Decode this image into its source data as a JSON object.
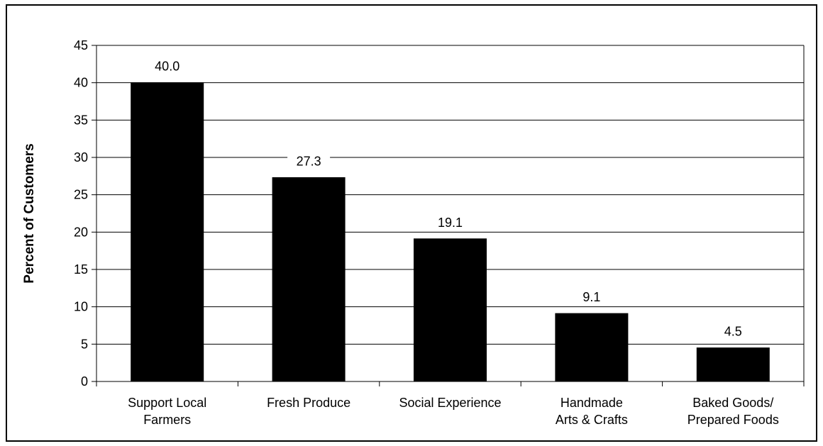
{
  "chart_data": {
    "type": "bar",
    "categories": [
      [
        "Support Local",
        "Farmers"
      ],
      [
        "Fresh Produce"
      ],
      [
        "Social Experience"
      ],
      [
        "Handmade",
        "Arts & Crafts"
      ],
      [
        "Baked Goods/",
        "Prepared Foods"
      ]
    ],
    "values": [
      40.0,
      27.3,
      19.1,
      9.1,
      4.5
    ],
    "data_labels": [
      "40.0",
      "27.3",
      "19.1",
      "9.1",
      "4.5"
    ],
    "yticks": [
      "0",
      "5",
      "10",
      "15",
      "20",
      "25",
      "30",
      "35",
      "40",
      "45"
    ],
    "ylabel": "Percent of Customers",
    "xlabel": "",
    "ylim": [
      0,
      45
    ],
    "grid": "horizontal",
    "bar_color": "#000000"
  }
}
